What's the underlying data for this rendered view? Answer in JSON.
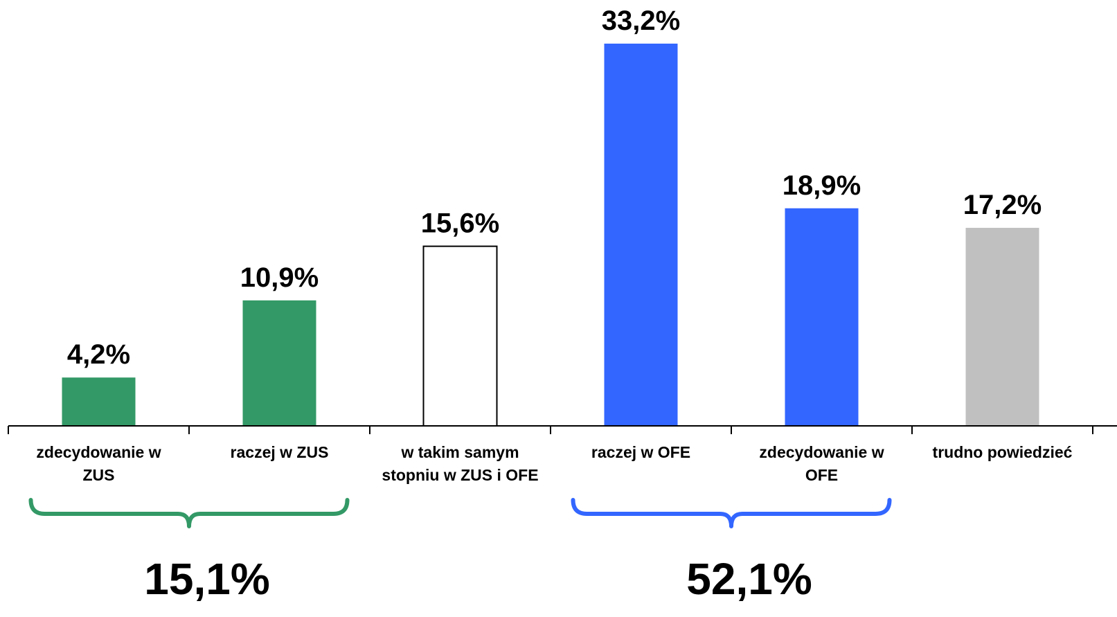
{
  "chart_data": {
    "type": "bar",
    "categories": [
      [
        "zdecydowanie w",
        "ZUS"
      ],
      [
        "raczej w ZUS"
      ],
      [
        "w takim samym",
        "stopniu w ZUS i OFE"
      ],
      [
        "raczej w OFE"
      ],
      [
        "zdecydowanie w",
        "OFE"
      ],
      [
        "trudno powiedzieć"
      ]
    ],
    "values": [
      4.2,
      10.9,
      15.6,
      33.2,
      18.9,
      17.2
    ],
    "value_labels": [
      "4,2%",
      "10,9%",
      "15,6%",
      "33,2%",
      "18,9%",
      "17,2%"
    ],
    "bar_colors": [
      "#339966",
      "#339966",
      "#ffffff",
      "#3366ff",
      "#3366ff",
      "#c0c0c0"
    ],
    "bar_outline": [
      false,
      false,
      true,
      false,
      false,
      false
    ],
    "ylim": [
      0,
      33.2
    ],
    "grid": false,
    "legend": "none",
    "groups": [
      {
        "from": 0,
        "to": 1,
        "total": "15,1%",
        "color": "#339966"
      },
      {
        "from": 3,
        "to": 4,
        "total": "52,1%",
        "color": "#3366ff"
      }
    ]
  }
}
